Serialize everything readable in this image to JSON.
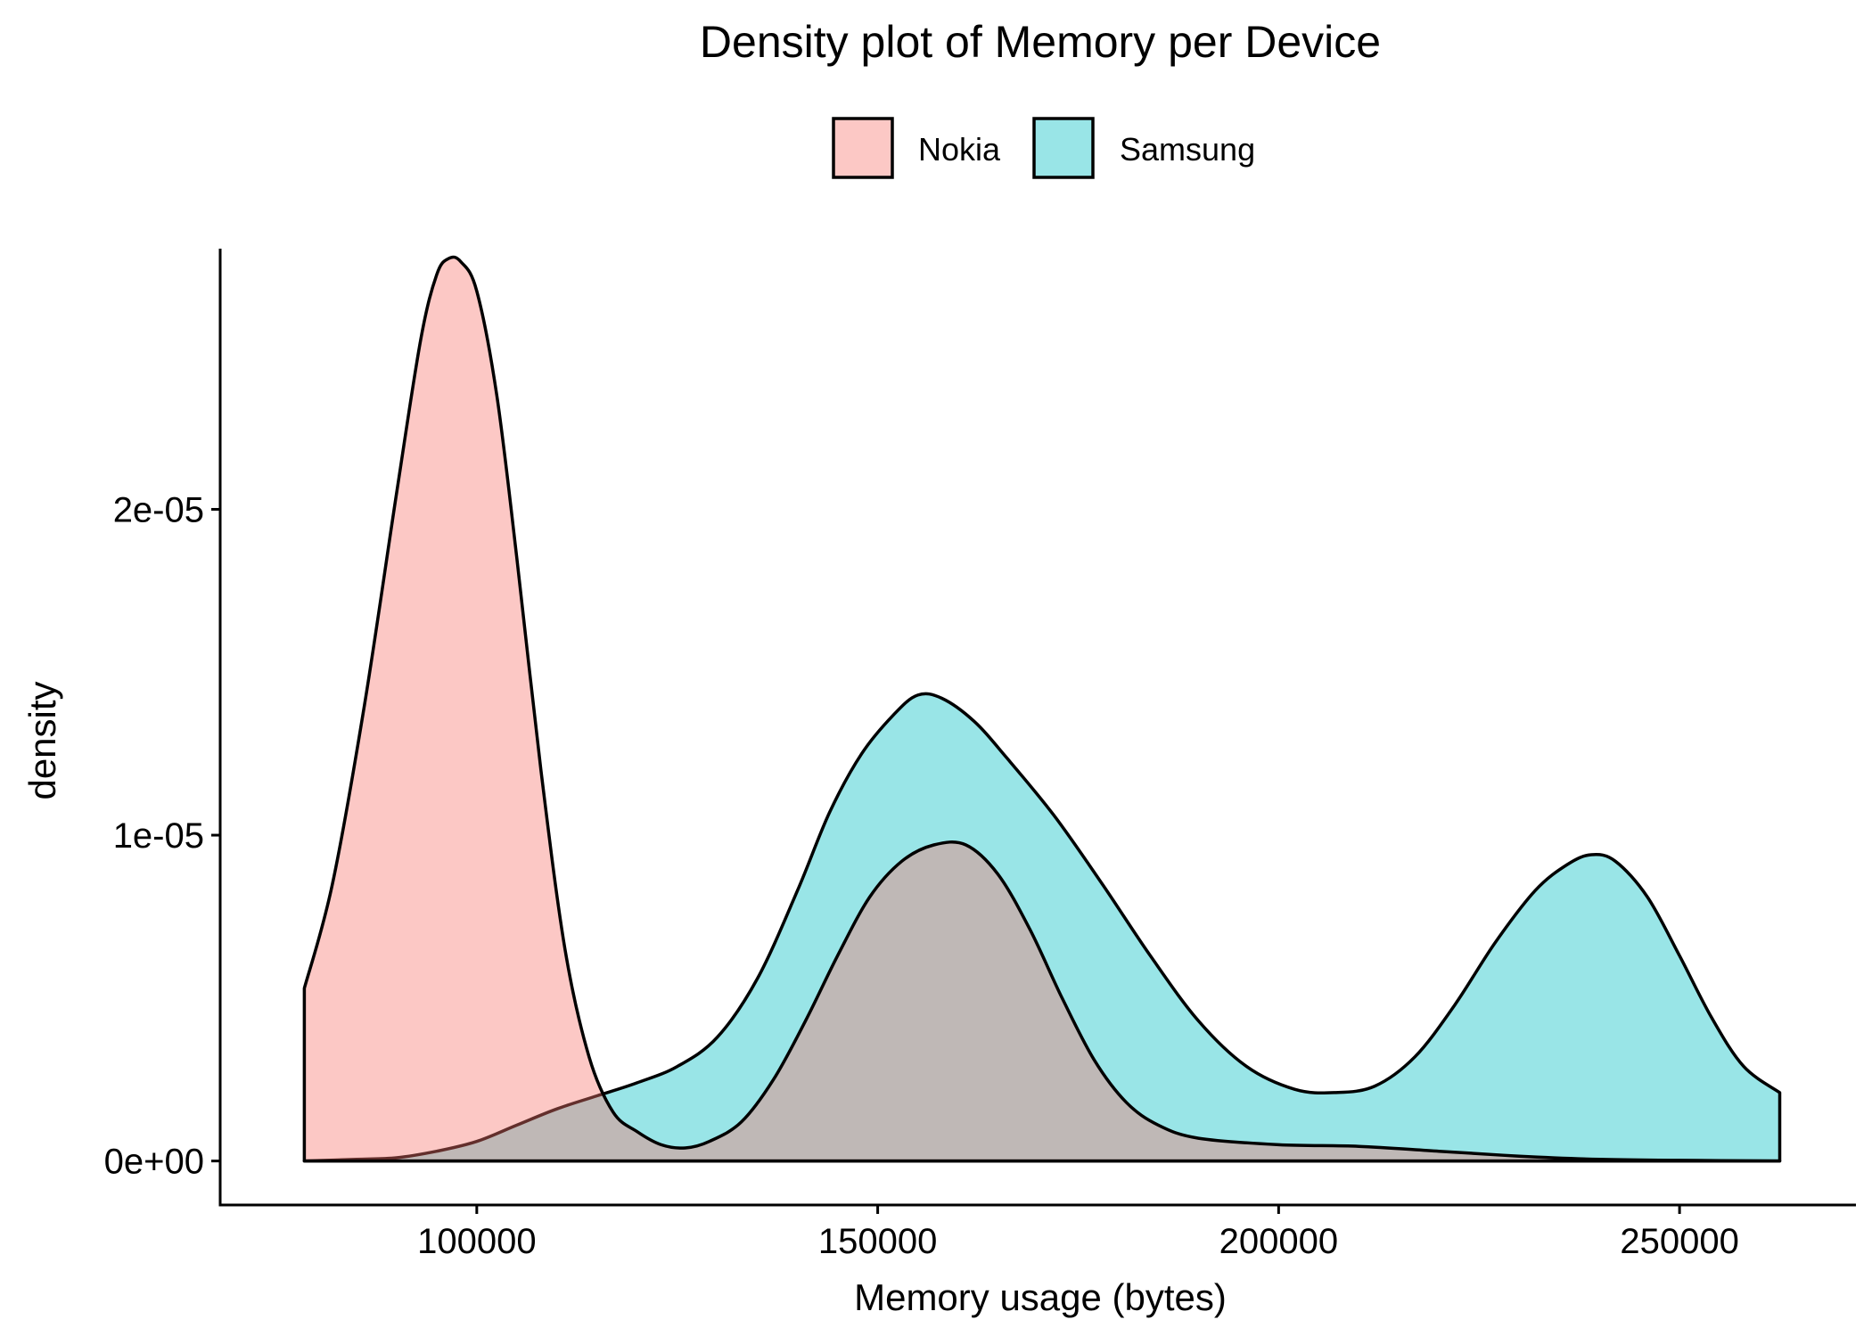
{
  "chart_data": {
    "type": "area",
    "title": "Density plot of Memory per Device",
    "xlabel": "Memory usage (bytes)",
    "ylabel": "density",
    "xlim": [
      68000,
      272000
    ],
    "ylim": [
      -1.35e-06,
      2.8e-05
    ],
    "x_ticks": [
      100000,
      150000,
      200000,
      250000
    ],
    "x_tick_labels": [
      "100000",
      "150000",
      "200000",
      "250000"
    ],
    "y_ticks": [
      0,
      1e-05,
      2e-05
    ],
    "y_tick_labels": [
      "0e+00",
      "1e-05",
      "2e-05"
    ],
    "legend_position": "top-center",
    "grid": false,
    "series": [
      {
        "name": "Nokia",
        "fill_color": "#F8766D",
        "fill_opacity": 0.4,
        "points": [
          [
            78500,
            5.3e-06
          ],
          [
            82000,
            8.5e-06
          ],
          [
            86000,
            1.4e-05
          ],
          [
            90000,
            2.05e-05
          ],
          [
            93000,
            2.52e-05
          ],
          [
            95000,
            2.72e-05
          ],
          [
            96500,
            2.77e-05
          ],
          [
            98000,
            2.76e-05
          ],
          [
            100000,
            2.67e-05
          ],
          [
            102500,
            2.35e-05
          ],
          [
            105000,
            1.85e-05
          ],
          [
            108000,
            1.2e-05
          ],
          [
            111000,
            6.5e-06
          ],
          [
            114000,
            3.2e-06
          ],
          [
            117000,
            1.5e-06
          ],
          [
            120000,
            9e-07
          ],
          [
            123000,
            5e-07
          ],
          [
            126000,
            4e-07
          ],
          [
            129000,
            6e-07
          ],
          [
            133000,
            1.2e-06
          ],
          [
            137000,
            2.5e-06
          ],
          [
            141000,
            4.3e-06
          ],
          [
            145000,
            6.3e-06
          ],
          [
            149000,
            8.1e-06
          ],
          [
            153000,
            9.2e-06
          ],
          [
            157000,
            9.7e-06
          ],
          [
            161000,
            9.7e-06
          ],
          [
            165000,
            8.8e-06
          ],
          [
            169000,
            7.1e-06
          ],
          [
            173000,
            5e-06
          ],
          [
            177000,
            3.1e-06
          ],
          [
            181000,
            1.8e-06
          ],
          [
            185000,
            1.1e-06
          ],
          [
            190000,
            7e-07
          ],
          [
            200000,
            5e-07
          ],
          [
            210000,
            4.5e-07
          ],
          [
            220000,
            3e-07
          ],
          [
            230000,
            1.5e-07
          ],
          [
            240000,
            5e-08
          ],
          [
            250000,
            2e-08
          ],
          [
            262500,
            0
          ]
        ]
      },
      {
        "name": "Samsung",
        "fill_color": "#00BFC4",
        "fill_opacity": 0.4,
        "points": [
          [
            78500,
            0
          ],
          [
            85000,
            5e-08
          ],
          [
            90000,
            1e-07
          ],
          [
            95000,
            3e-07
          ],
          [
            100000,
            6e-07
          ],
          [
            105000,
            1.1e-06
          ],
          [
            110000,
            1.6e-06
          ],
          [
            115000,
            2e-06
          ],
          [
            120000,
            2.4e-06
          ],
          [
            125000,
            2.9e-06
          ],
          [
            130000,
            3.8e-06
          ],
          [
            135000,
            5.6e-06
          ],
          [
            140000,
            8.3e-06
          ],
          [
            144000,
            1.07e-05
          ],
          [
            148000,
            1.25e-05
          ],
          [
            152000,
            1.37e-05
          ],
          [
            155000,
            1.43e-05
          ],
          [
            158000,
            1.42e-05
          ],
          [
            162000,
            1.35e-05
          ],
          [
            166000,
            1.24e-05
          ],
          [
            172000,
            1.06e-05
          ],
          [
            178000,
            8.5e-06
          ],
          [
            184000,
            6.3e-06
          ],
          [
            190000,
            4.3e-06
          ],
          [
            196000,
            2.9e-06
          ],
          [
            202000,
            2.2e-06
          ],
          [
            207000,
            2.1e-06
          ],
          [
            212000,
            2.3e-06
          ],
          [
            217000,
            3.2e-06
          ],
          [
            222000,
            4.8e-06
          ],
          [
            227000,
            6.7e-06
          ],
          [
            232000,
            8.3e-06
          ],
          [
            236000,
            9.1e-06
          ],
          [
            239000,
            9.4e-06
          ],
          [
            242000,
            9.2e-06
          ],
          [
            246000,
            8.1e-06
          ],
          [
            250000,
            6.3e-06
          ],
          [
            254000,
            4.4e-06
          ],
          [
            258000,
            2.9e-06
          ],
          [
            262500,
            2.1e-06
          ]
        ]
      }
    ]
  }
}
